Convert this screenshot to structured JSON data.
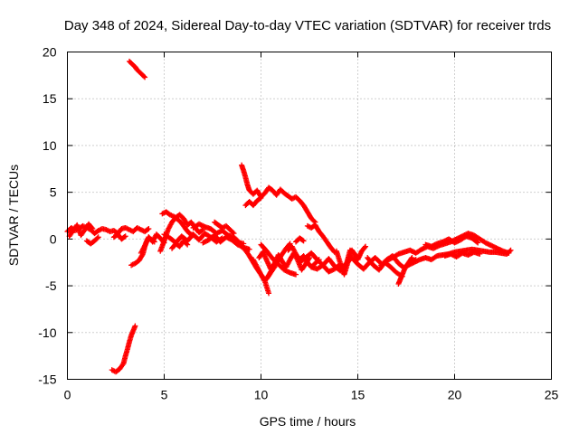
{
  "chart_data": {
    "type": "scatter",
    "title": "Day 348 of 2024, Sidereal Day-to-day VTEC variation (SDTVAR) for receiver trds",
    "xlabel": "GPS time / hours",
    "ylabel": "SDTVAR / TECUs",
    "xlim": [
      0,
      25
    ],
    "ylim": [
      -15,
      20
    ],
    "xticks": [
      0,
      5,
      10,
      15,
      20,
      25
    ],
    "yticks": [
      -15,
      -10,
      -5,
      0,
      5,
      10,
      15,
      20
    ],
    "grid": true,
    "marker": "+",
    "series": [
      {
        "name": "SDTVAR",
        "color": "#ff0000",
        "segments": [
          {
            "x": [
              0.0,
              0.2,
              0.4,
              0.6,
              0.8,
              1.0,
              1.2,
              1.4,
              1.6,
              1.8,
              2.0,
              2.2,
              2.4,
              2.6,
              2.8,
              3.0,
              3.2,
              3.4,
              3.6,
              3.8,
              4.0,
              4.2
            ],
            "y": [
              0.8,
              1.2,
              0.9,
              1.1,
              1.4,
              1.2,
              1.0,
              0.6,
              0.9,
              1.1,
              1.0,
              0.8,
              0.9,
              0.6,
              1.1,
              1.2,
              1.0,
              0.8,
              1.2,
              1.0,
              0.8,
              1.1
            ]
          },
          {
            "x": [
              0.1,
              0.3,
              0.5,
              0.7,
              0.9,
              1.1,
              1.3
            ],
            "y": [
              0.3,
              0.9,
              1.5,
              0.4,
              1.0,
              1.6,
              1.1
            ]
          },
          {
            "x": [
              1.0,
              1.2,
              1.4,
              1.6
            ],
            "y": [
              -0.2,
              -0.5,
              -0.2,
              0.2
            ]
          },
          {
            "x": [
              2.4,
              2.6,
              2.8,
              3.0
            ],
            "y": [
              0.2,
              0.5,
              0.0,
              0.3
            ]
          },
          {
            "x": [
              3.2,
              3.3,
              3.4,
              3.5,
              3.6,
              3.7,
              3.8,
              3.9,
              4.0
            ],
            "y": [
              19.0,
              18.8,
              18.6,
              18.4,
              18.1,
              17.9,
              17.7,
              17.5,
              17.3
            ]
          },
          {
            "x": [
              2.3,
              2.5,
              2.7,
              2.9,
              3.0,
              3.1,
              3.2,
              3.3,
              3.4,
              3.5
            ],
            "y": [
              -14.0,
              -14.2,
              -13.9,
              -13.3,
              -12.5,
              -11.8,
              -11.0,
              -10.3,
              -9.8,
              -9.3
            ]
          },
          {
            "x": [
              3.3,
              3.5,
              3.7,
              3.9,
              4.0,
              4.1,
              4.2,
              4.3,
              4.5
            ],
            "y": [
              -2.8,
              -2.6,
              -2.3,
              -1.6,
              -0.8,
              -0.2,
              0.2,
              0.0,
              -0.3
            ]
          },
          {
            "x": [
              3.8,
              4.0,
              4.2,
              4.4,
              4.6,
              4.8,
              5.0
            ],
            "y": [
              -1.5,
              -0.7,
              0.2,
              -0.3,
              0.5,
              0.1,
              -0.4
            ]
          },
          {
            "x": [
              4.8,
              5.0,
              5.2,
              5.4,
              5.6,
              5.8,
              6.0,
              6.2,
              6.4,
              6.6,
              6.8,
              7.0
            ],
            "y": [
              -1.3,
              -0.2,
              1.0,
              1.8,
              2.3,
              2.6,
              2.2,
              1.5,
              1.8,
              1.2,
              0.7,
              1.0
            ]
          },
          {
            "x": [
              4.9,
              5.1,
              5.3,
              5.5,
              5.7,
              5.9,
              6.1,
              6.3,
              6.5
            ],
            "y": [
              2.7,
              2.9,
              2.6,
              2.4,
              2.1,
              1.7,
              1.1,
              0.6,
              0.4
            ]
          },
          {
            "x": [
              5.0,
              5.3,
              5.6,
              5.9,
              6.2,
              6.5,
              6.8,
              7.1,
              7.4,
              7.7,
              8.0
            ],
            "y": [
              0.5,
              0.1,
              -0.4,
              0.3,
              -0.2,
              0.5,
              -0.1,
              0.6,
              0.2,
              -0.3,
              0.1
            ]
          },
          {
            "x": [
              5.4,
              5.6,
              5.8,
              6.0,
              6.2
            ],
            "y": [
              -1.0,
              -0.5,
              -0.8,
              -0.2,
              -0.6
            ]
          },
          {
            "x": [
              6.5,
              6.8,
              7.1,
              7.4,
              7.7,
              8.0,
              8.3,
              8.6,
              8.9,
              9.1
            ],
            "y": [
              1.2,
              1.6,
              1.3,
              1.1,
              0.6,
              0.9,
              0.4,
              0.2,
              -0.4,
              -0.5
            ]
          },
          {
            "x": [
              7.0,
              7.3,
              7.6,
              7.9,
              8.2,
              8.5,
              8.8,
              9.1,
              9.4
            ],
            "y": [
              -0.4,
              -0.1,
              0.4,
              -0.3,
              0.2,
              -0.1,
              -0.6,
              -0.9,
              -1.1
            ]
          },
          {
            "x": [
              7.6,
              7.8,
              8.0,
              8.2,
              8.4,
              8.6
            ],
            "y": [
              1.8,
              1.5,
              1.2,
              1.4,
              1.0,
              0.6
            ]
          },
          {
            "x": [
              9.0,
              9.1,
              9.2,
              9.3,
              9.4,
              9.6,
              9.8,
              10.0,
              10.2,
              10.4,
              10.6,
              10.8,
              11.0,
              11.2,
              11.4,
              11.6,
              11.8,
              12.0,
              12.2,
              12.4,
              12.6,
              12.8
            ],
            "y": [
              7.9,
              7.3,
              6.6,
              5.8,
              5.2,
              4.8,
              5.2,
              4.5,
              4.9,
              5.5,
              5.2,
              4.7,
              5.3,
              4.9,
              4.6,
              4.3,
              4.5,
              4.1,
              3.6,
              2.9,
              2.2,
              1.8
            ]
          },
          {
            "x": [
              9.2,
              9.4,
              9.6,
              9.8,
              10.0
            ],
            "y": [
              3.6,
              4.0,
              3.6,
              4.1,
              4.4
            ]
          },
          {
            "x": [
              9.0,
              9.2,
              9.4,
              9.6,
              9.8,
              10.0,
              10.2,
              10.4
            ],
            "y": [
              -0.8,
              -1.2,
              -1.8,
              -2.5,
              -3.2,
              -3.8,
              -4.5,
              -5.8
            ]
          },
          {
            "x": [
              9.6,
              9.8,
              10.0,
              10.2,
              10.4,
              10.6,
              10.8,
              11.0
            ],
            "y": [
              -2.2,
              -3.0,
              -3.8,
              -4.5,
              -3.9,
              -3.1,
              -2.5,
              -2.0
            ]
          },
          {
            "x": [
              9.9,
              10.1,
              10.3,
              10.5,
              10.7,
              10.9,
              11.1,
              11.3,
              11.5,
              11.7,
              11.9,
              12.1,
              12.3,
              12.5
            ],
            "y": [
              -2.0,
              -1.4,
              -2.3,
              -3.2,
              -2.6,
              -1.7,
              -2.4,
              -3.0,
              -2.2,
              -1.5,
              -2.3,
              -3.3,
              -2.7,
              -2.0
            ]
          },
          {
            "x": [
              10.3,
              10.5,
              10.7,
              10.9,
              11.1,
              11.3,
              11.5
            ],
            "y": [
              -4.2,
              -3.6,
              -3.0,
              -2.2,
              -1.6,
              -1.0,
              -0.5
            ]
          },
          {
            "x": [
              10.0,
              10.3,
              10.6,
              10.9,
              11.2,
              11.5,
              11.8
            ],
            "y": [
              -0.6,
              -1.3,
              -2.1,
              -2.7,
              -3.3,
              -3.6,
              -3.8
            ]
          },
          {
            "x": [
              11.4,
              11.6,
              11.8,
              12.0,
              12.2,
              12.4,
              12.6,
              12.8,
              13.0
            ],
            "y": [
              -1.2,
              -0.8,
              -1.6,
              -2.2,
              -1.8,
              -2.5,
              -3.0,
              -2.6,
              -2.2
            ]
          },
          {
            "x": [
              11.8,
              12.0,
              12.2
            ],
            "y": [
              -0.3,
              0.1,
              -0.2
            ]
          },
          {
            "x": [
              12.0,
              12.3,
              12.6,
              12.9,
              13.2,
              13.5,
              13.8,
              14.1,
              14.4,
              14.7,
              15.0,
              15.3,
              15.6,
              15.9,
              16.2
            ],
            "y": [
              -2.5,
              -2.0,
              -1.5,
              -2.2,
              -2.8,
              -2.1,
              -2.9,
              -3.4,
              -2.6,
              -2.0,
              -2.7,
              -3.2,
              -2.5,
              -2.0,
              -2.6
            ]
          },
          {
            "x": [
              12.4,
              12.6,
              12.8,
              13.0,
              13.2,
              13.4,
              13.6,
              13.8
            ],
            "y": [
              1.4,
              1.2,
              1.5,
              0.8,
              0.3,
              -0.3,
              -0.9,
              -1.4
            ]
          },
          {
            "x": [
              12.6,
              12.9,
              13.2,
              13.5,
              13.8,
              14.1
            ],
            "y": [
              -3.0,
              -3.2,
              -2.8,
              -3.5,
              -3.2,
              -2.7
            ]
          },
          {
            "x": [
              13.9,
              14.1,
              14.3,
              14.5,
              14.7,
              14.9
            ],
            "y": [
              -1.3,
              -2.6,
              -3.8,
              -2.4,
              -1.2,
              -1.8
            ]
          },
          {
            "x": [
              14.2,
              14.4,
              14.6,
              14.8,
              15.0,
              15.2,
              15.4
            ],
            "y": [
              -3.5,
              -2.8,
              -1.2,
              -1.5,
              -2.2,
              -1.3,
              -0.8
            ]
          },
          {
            "x": [
              15.5,
              15.8,
              16.1,
              16.4,
              16.7,
              17.0,
              17.3
            ],
            "y": [
              -2.0,
              -2.8,
              -3.3,
              -2.5,
              -3.0,
              -3.6,
              -4.0
            ]
          },
          {
            "x": [
              16.2,
              16.5,
              16.8,
              17.1,
              17.4,
              17.7,
              18.0
            ],
            "y": [
              -2.8,
              -2.2,
              -1.8,
              -2.6,
              -3.1,
              -2.6,
              -2.2
            ]
          },
          {
            "x": [
              17.1,
              17.2,
              17.3,
              17.4,
              17.5,
              17.6,
              17.7,
              17.8
            ],
            "y": [
              -4.8,
              -4.3,
              -3.8,
              -3.3,
              -2.9,
              -2.6,
              -2.3,
              -2.0
            ]
          },
          {
            "x": [
              16.5,
              16.8,
              17.1,
              17.4,
              17.7,
              18.0,
              18.3,
              18.6,
              18.9,
              19.2,
              19.5,
              19.8,
              20.1,
              20.4,
              20.7,
              21.0,
              21.3,
              21.6,
              21.9,
              22.2,
              22.5,
              22.8
            ],
            "y": [
              -2.3,
              -2.0,
              -1.6,
              -1.4,
              -1.2,
              -1.5,
              -1.1,
              -0.8,
              -1.0,
              -0.7,
              -0.5,
              -0.3,
              0.0,
              0.3,
              0.6,
              0.4,
              0.0,
              -0.4,
              -0.7,
              -1.0,
              -1.3,
              -1.5
            ]
          },
          {
            "x": [
              17.6,
              17.9,
              18.2,
              18.5,
              18.8,
              19.1,
              19.4,
              19.7,
              20.0,
              20.3,
              20.6,
              20.9,
              21.2,
              21.5,
              21.8,
              22.1,
              22.4,
              22.7,
              22.9
            ],
            "y": [
              -2.8,
              -2.5,
              -2.2,
              -2.0,
              -2.2,
              -1.8,
              -1.7,
              -1.6,
              -1.4,
              -1.3,
              -1.2,
              -1.1,
              -1.2,
              -1.3,
              -1.4,
              -1.4,
              -1.5,
              -1.6,
              -1.2
            ]
          },
          {
            "x": [
              18.5,
              18.8,
              19.1,
              19.4,
              19.7,
              20.0,
              20.3,
              20.6,
              20.9,
              21.2
            ],
            "y": [
              -0.6,
              -0.8,
              -0.5,
              -0.3,
              0.0,
              -0.4,
              -0.1,
              0.3,
              0.1,
              -0.4
            ]
          },
          {
            "x": [
              19.5,
              19.8,
              20.1,
              20.4,
              20.7,
              21.0,
              21.3
            ],
            "y": [
              -1.8,
              -1.6,
              -1.9,
              -1.5,
              -1.7,
              -1.4,
              -1.6
            ]
          }
        ]
      }
    ]
  }
}
